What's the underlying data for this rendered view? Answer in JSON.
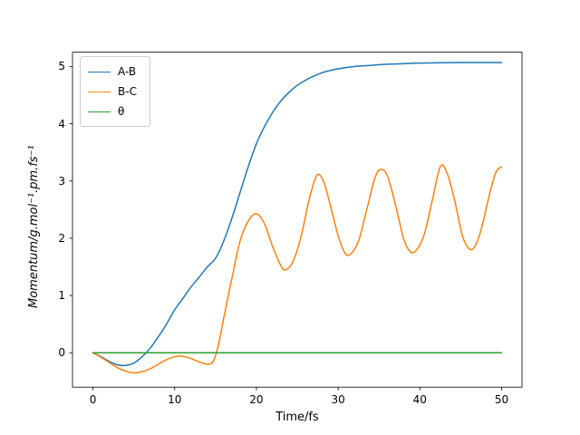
{
  "chart_data": {
    "type": "line",
    "title": "",
    "xlabel": "Time/fs",
    "ylabel": "Momentum/g.mol⁻¹.pm.fs⁻¹",
    "xlim": [
      -2.5,
      52.5
    ],
    "ylim": [
      -0.6,
      5.25
    ],
    "xticks": [
      0,
      10,
      20,
      30,
      40,
      50
    ],
    "yticks": [
      0,
      1,
      2,
      3,
      4,
      5
    ],
    "grid": false,
    "legend": {
      "position": "upper left",
      "entries": [
        "A-B",
        "B-C",
        "θ"
      ]
    },
    "series": [
      {
        "name": "A-B",
        "color": "#1f77b4",
        "x": [
          0,
          1,
          2,
          3,
          4,
          5,
          6,
          7,
          8,
          9,
          10,
          11,
          12,
          13,
          14,
          15,
          16,
          17,
          18,
          19,
          20,
          21,
          22,
          23,
          24,
          25,
          26,
          27,
          28,
          29,
          30,
          32,
          34,
          36,
          38,
          40,
          45,
          50
        ],
        "y": [
          0,
          -0.07,
          -0.15,
          -0.21,
          -0.22,
          -0.18,
          -0.07,
          0.08,
          0.28,
          0.5,
          0.75,
          0.95,
          1.15,
          1.32,
          1.5,
          1.65,
          1.95,
          2.35,
          2.8,
          3.25,
          3.65,
          3.95,
          4.2,
          4.4,
          4.55,
          4.67,
          4.76,
          4.83,
          4.89,
          4.93,
          4.96,
          5.0,
          5.02,
          5.04,
          5.05,
          5.06,
          5.07,
          5.07
        ]
      },
      {
        "name": "B-C",
        "color": "#ff7f0e",
        "x": [
          0,
          1,
          2,
          3,
          4,
          5,
          6,
          7,
          8,
          9,
          10,
          11,
          12,
          13,
          14,
          14.7,
          15.3,
          16,
          17,
          18,
          19,
          20,
          21,
          22,
          23,
          23.6,
          24.5,
          25.5,
          26.5,
          27.4,
          28.2,
          29,
          30,
          30.8,
          31.5,
          32.5,
          33.5,
          34.5,
          35.2,
          36,
          37,
          38,
          38.8,
          39.5,
          40.5,
          41.5,
          42.5,
          43.3,
          44.2,
          45.2,
          46,
          46.7,
          47.5,
          48.5,
          49.3,
          50
        ],
        "y": [
          0,
          -0.08,
          -0.17,
          -0.26,
          -0.32,
          -0.35,
          -0.33,
          -0.28,
          -0.2,
          -0.12,
          -0.07,
          -0.06,
          -0.1,
          -0.16,
          -0.2,
          -0.15,
          0.1,
          0.6,
          1.3,
          1.95,
          2.3,
          2.43,
          2.25,
          1.85,
          1.52,
          1.45,
          1.6,
          2.05,
          2.7,
          3.1,
          3.0,
          2.6,
          2.05,
          1.75,
          1.72,
          1.95,
          2.5,
          3.05,
          3.2,
          3.1,
          2.6,
          2.0,
          1.77,
          1.78,
          2.05,
          2.65,
          3.25,
          3.15,
          2.7,
          2.05,
          1.82,
          1.85,
          2.15,
          2.75,
          3.15,
          3.25
        ]
      },
      {
        "name": "θ",
        "color": "#2ca02c",
        "x": [
          0,
          50
        ],
        "y": [
          0,
          0
        ]
      }
    ]
  }
}
